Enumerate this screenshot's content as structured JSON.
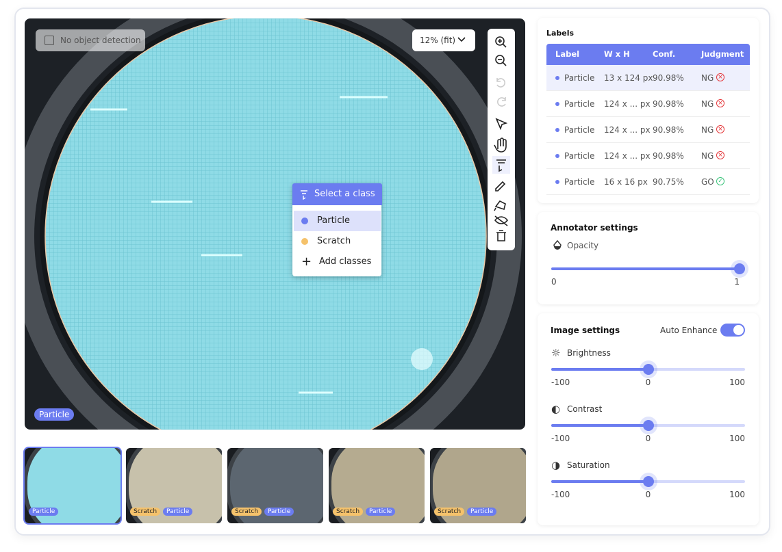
{
  "canvas": {
    "detection_toggle": "No object detection",
    "zoom": "12% (fit)",
    "class_menu": {
      "title": "Select a class",
      "options": [
        "Particle",
        "Scratch"
      ],
      "add": "Add classes"
    },
    "active_label": "Particle"
  },
  "thumbnails": [
    {
      "tags": [
        "Particle"
      ]
    },
    {
      "tags": [
        "Scratch",
        "Particle"
      ]
    },
    {
      "tags": [
        "Scratch",
        "Particle"
      ]
    },
    {
      "tags": [
        "Scratch",
        "Particle"
      ]
    },
    {
      "tags": [
        "Scratch",
        "Particle"
      ]
    }
  ],
  "labels": {
    "title": "Labels",
    "columns": [
      "Label",
      "W x H",
      "Conf.",
      "Judgment"
    ],
    "rows": [
      [
        "Particle",
        "13 x 124 px",
        "90.98%",
        "NG"
      ],
      [
        "Particle",
        "124 x ... px",
        "90.98%",
        "NG"
      ],
      [
        "Particle",
        "124 x ... px",
        "90.98%",
        "NG"
      ],
      [
        "Particle",
        "124 x ... px",
        "90.98%",
        "NG"
      ],
      [
        "Particle",
        "16 x 16  px",
        "90.75%",
        "GO"
      ]
    ]
  },
  "annotator_settings": {
    "title": "Annotator settings",
    "opacity": {
      "label": "Opacity",
      "min": 0,
      "max": 1,
      "value": 1
    }
  },
  "image_settings": {
    "title": "Image settings",
    "auto_enhance": {
      "label": "Auto Enhance",
      "on": true
    },
    "sliders": [
      {
        "label": "Brightness",
        "min": -100,
        "mid": 0,
        "max": 100,
        "value": 0
      },
      {
        "label": "Contrast",
        "min": -100,
        "mid": 0,
        "max": 100,
        "value": 0
      },
      {
        "label": "Saturation",
        "min": -100,
        "mid": 0,
        "max": 100,
        "value": 0
      }
    ]
  }
}
